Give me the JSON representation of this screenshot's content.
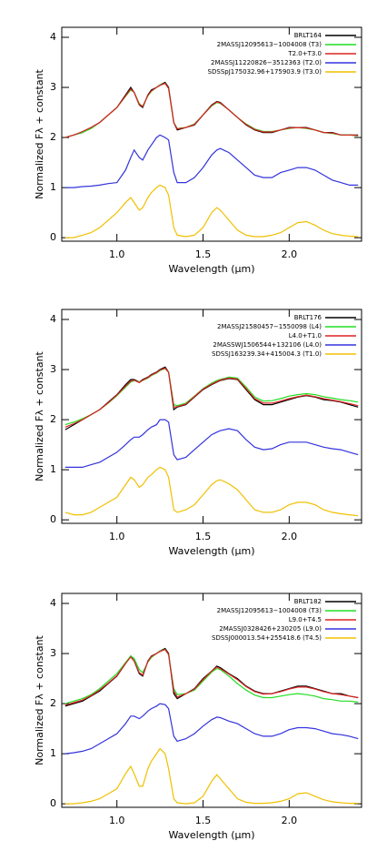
{
  "chart_data": [
    {
      "type": "line",
      "xlabel": "Wavelength (μm)",
      "ylabel": "Normalized Fλ + constant",
      "legend": "upper right",
      "xlim": [
        0.68,
        2.42
      ],
      "ylim": [
        -0.07,
        4.2
      ],
      "xticks": [
        {
          "value": 1,
          "label": "1.0"
        },
        {
          "value": 1.5,
          "label": "1.5"
        },
        {
          "value": 2,
          "label": "2.0"
        }
      ],
      "yticks": [
        0,
        1,
        2,
        3,
        4
      ],
      "x": [
        0.7,
        0.75,
        0.8,
        0.85,
        0.9,
        0.95,
        1.0,
        1.05,
        1.08,
        1.1,
        1.13,
        1.15,
        1.18,
        1.2,
        1.23,
        1.25,
        1.28,
        1.3,
        1.33,
        1.35,
        1.4,
        1.45,
        1.5,
        1.55,
        1.58,
        1.6,
        1.65,
        1.7,
        1.75,
        1.8,
        1.85,
        1.9,
        1.95,
        2.0,
        2.05,
        2.1,
        2.15,
        2.2,
        2.25,
        2.3,
        2.35,
        2.4
      ],
      "series": [
        {
          "name": "BRLT164",
          "color": "#000000",
          "values": [
            2.0,
            2.05,
            2.1,
            2.2,
            2.3,
            2.45,
            2.6,
            2.85,
            3.0,
            2.9,
            2.65,
            2.6,
            2.85,
            2.95,
            3.0,
            3.05,
            3.1,
            3.0,
            2.3,
            2.15,
            2.2,
            2.25,
            2.45,
            2.65,
            2.72,
            2.7,
            2.55,
            2.4,
            2.25,
            2.15,
            2.1,
            2.1,
            2.15,
            2.2,
            2.2,
            2.2,
            2.15,
            2.1,
            2.1,
            2.05,
            2.05,
            2.05
          ]
        },
        {
          "name": "2MASSJ12095613−1004008 (T3)",
          "color": "#22dd22",
          "values": [
            2.0,
            2.05,
            2.1,
            2.18,
            2.3,
            2.45,
            2.6,
            2.82,
            2.95,
            2.9,
            2.68,
            2.62,
            2.83,
            2.92,
            3.0,
            3.05,
            3.08,
            2.98,
            2.3,
            2.18,
            2.2,
            2.27,
            2.45,
            2.63,
            2.7,
            2.68,
            2.55,
            2.4,
            2.27,
            2.17,
            2.12,
            2.12,
            2.15,
            2.18,
            2.2,
            2.18,
            2.15,
            2.1,
            2.08,
            2.05,
            2.05,
            2.03
          ]
        },
        {
          "name": "T2.0+T3.0",
          "color": "#dd2222",
          "values": [
            2.0,
            2.05,
            2.12,
            2.2,
            2.3,
            2.45,
            2.6,
            2.83,
            2.97,
            2.9,
            2.66,
            2.62,
            2.84,
            2.93,
            3.0,
            3.04,
            3.08,
            2.98,
            2.3,
            2.17,
            2.2,
            2.26,
            2.45,
            2.64,
            2.71,
            2.69,
            2.55,
            2.4,
            2.26,
            2.16,
            2.11,
            2.11,
            2.15,
            2.19,
            2.2,
            2.19,
            2.15,
            2.1,
            2.09,
            2.05,
            2.05,
            2.04
          ]
        },
        {
          "name": "2MASSJ11220826−3512363 (T2.0)",
          "color": "#3333dd",
          "values": [
            1.0,
            1.0,
            1.02,
            1.03,
            1.05,
            1.08,
            1.1,
            1.35,
            1.6,
            1.75,
            1.6,
            1.55,
            1.75,
            1.85,
            2.0,
            2.05,
            2.0,
            1.95,
            1.3,
            1.1,
            1.1,
            1.2,
            1.4,
            1.65,
            1.75,
            1.78,
            1.7,
            1.55,
            1.4,
            1.25,
            1.2,
            1.2,
            1.3,
            1.35,
            1.4,
            1.4,
            1.35,
            1.25,
            1.15,
            1.1,
            1.05,
            1.05
          ]
        },
        {
          "name": "SDSSpJ175032.96+175903.9 (T3.0)",
          "color": "#f0c000",
          "values": [
            0.0,
            0.0,
            0.05,
            0.1,
            0.2,
            0.35,
            0.5,
            0.7,
            0.8,
            0.7,
            0.55,
            0.6,
            0.8,
            0.9,
            1.0,
            1.05,
            1.0,
            0.85,
            0.2,
            0.05,
            0.02,
            0.05,
            0.2,
            0.5,
            0.6,
            0.55,
            0.35,
            0.15,
            0.05,
            0.02,
            0.02,
            0.05,
            0.1,
            0.2,
            0.3,
            0.32,
            0.25,
            0.15,
            0.08,
            0.05,
            0.03,
            0.02
          ]
        }
      ]
    },
    {
      "type": "line",
      "xlabel": "Wavelength (μm)",
      "ylabel": "Normalized Fλ + constant",
      "legend": "upper right",
      "xlim": [
        0.68,
        2.42
      ],
      "ylim": [
        -0.07,
        4.2
      ],
      "xticks": [
        {
          "value": 1,
          "label": "1.0"
        },
        {
          "value": 1.5,
          "label": "1.5"
        },
        {
          "value": 2,
          "label": "2.0"
        }
      ],
      "yticks": [
        0,
        1,
        2,
        3,
        4
      ],
      "x": [
        0.7,
        0.75,
        0.8,
        0.85,
        0.9,
        0.95,
        1.0,
        1.05,
        1.08,
        1.1,
        1.13,
        1.15,
        1.18,
        1.2,
        1.23,
        1.25,
        1.28,
        1.3,
        1.33,
        1.35,
        1.4,
        1.45,
        1.5,
        1.55,
        1.58,
        1.6,
        1.65,
        1.7,
        1.75,
        1.8,
        1.85,
        1.9,
        1.95,
        2.0,
        2.05,
        2.1,
        2.15,
        2.2,
        2.25,
        2.3,
        2.35,
        2.4
      ],
      "series": [
        {
          "name": "BRLT176",
          "color": "#000000",
          "values": [
            1.8,
            1.9,
            2.0,
            2.1,
            2.2,
            2.35,
            2.5,
            2.7,
            2.8,
            2.8,
            2.75,
            2.8,
            2.85,
            2.9,
            2.95,
            3.0,
            3.05,
            2.95,
            2.2,
            2.25,
            2.3,
            2.45,
            2.6,
            2.7,
            2.75,
            2.78,
            2.82,
            2.8,
            2.6,
            2.4,
            2.3,
            2.3,
            2.35,
            2.4,
            2.45,
            2.48,
            2.45,
            2.4,
            2.38,
            2.35,
            2.3,
            2.25
          ]
        },
        {
          "name": "2MASSJ21580457−1550098 (L4)",
          "color": "#22dd22",
          "values": [
            1.9,
            1.95,
            2.02,
            2.1,
            2.2,
            2.33,
            2.48,
            2.65,
            2.75,
            2.78,
            2.75,
            2.78,
            2.83,
            2.88,
            2.93,
            2.98,
            3.02,
            2.95,
            2.3,
            2.28,
            2.33,
            2.47,
            2.62,
            2.73,
            2.78,
            2.8,
            2.85,
            2.83,
            2.65,
            2.45,
            2.37,
            2.38,
            2.42,
            2.47,
            2.5,
            2.52,
            2.5,
            2.46,
            2.43,
            2.4,
            2.38,
            2.35
          ]
        },
        {
          "name": "L4.0+T1.0",
          "color": "#dd2222",
          "values": [
            1.85,
            1.92,
            2.0,
            2.1,
            2.2,
            2.34,
            2.49,
            2.67,
            2.77,
            2.79,
            2.74,
            2.79,
            2.84,
            2.89,
            2.94,
            2.99,
            3.03,
            2.94,
            2.25,
            2.26,
            2.31,
            2.46,
            2.61,
            2.71,
            2.76,
            2.79,
            2.83,
            2.81,
            2.62,
            2.42,
            2.33,
            2.33,
            2.37,
            2.42,
            2.46,
            2.49,
            2.46,
            2.42,
            2.39,
            2.36,
            2.32,
            2.28
          ]
        },
        {
          "name": "2MASSWJ1506544+132106 (L4.0)",
          "color": "#3333dd",
          "values": [
            1.05,
            1.05,
            1.05,
            1.1,
            1.15,
            1.25,
            1.35,
            1.5,
            1.6,
            1.65,
            1.65,
            1.7,
            1.8,
            1.85,
            1.9,
            2.0,
            2.0,
            1.95,
            1.3,
            1.2,
            1.25,
            1.4,
            1.55,
            1.7,
            1.75,
            1.78,
            1.82,
            1.78,
            1.6,
            1.45,
            1.4,
            1.42,
            1.5,
            1.55,
            1.55,
            1.55,
            1.5,
            1.45,
            1.42,
            1.4,
            1.35,
            1.3
          ]
        },
        {
          "name": "SDSSJ163239.34+415004.3 (T1.0)",
          "color": "#f0c000",
          "values": [
            0.15,
            0.1,
            0.1,
            0.15,
            0.25,
            0.35,
            0.45,
            0.7,
            0.85,
            0.8,
            0.65,
            0.7,
            0.85,
            0.9,
            1.0,
            1.05,
            1.0,
            0.85,
            0.2,
            0.15,
            0.2,
            0.3,
            0.5,
            0.7,
            0.78,
            0.8,
            0.72,
            0.6,
            0.4,
            0.2,
            0.15,
            0.15,
            0.2,
            0.3,
            0.35,
            0.35,
            0.3,
            0.2,
            0.15,
            0.12,
            0.1,
            0.08
          ]
        }
      ]
    },
    {
      "type": "line",
      "xlabel": "Wavelength (μm)",
      "ylabel": "Normalized Fλ + constant",
      "legend": "upper right",
      "xlim": [
        0.68,
        2.42
      ],
      "ylim": [
        -0.07,
        4.2
      ],
      "xticks": [
        {
          "value": 1,
          "label": "1.0"
        },
        {
          "value": 1.5,
          "label": "1.5"
        },
        {
          "value": 2,
          "label": "2.0"
        }
      ],
      "yticks": [
        0,
        1,
        2,
        3,
        4
      ],
      "x": [
        0.7,
        0.75,
        0.8,
        0.85,
        0.9,
        0.95,
        1.0,
        1.05,
        1.08,
        1.1,
        1.13,
        1.15,
        1.18,
        1.2,
        1.23,
        1.25,
        1.28,
        1.3,
        1.33,
        1.35,
        1.4,
        1.45,
        1.5,
        1.55,
        1.58,
        1.6,
        1.65,
        1.7,
        1.75,
        1.8,
        1.85,
        1.9,
        1.95,
        2.0,
        2.05,
        2.1,
        2.15,
        2.2,
        2.25,
        2.3,
        2.35,
        2.4
      ],
      "series": [
        {
          "name": "BRLT182",
          "color": "#000000",
          "values": [
            1.95,
            2.0,
            2.05,
            2.15,
            2.25,
            2.4,
            2.55,
            2.8,
            2.95,
            2.85,
            2.6,
            2.55,
            2.85,
            2.95,
            3.0,
            3.05,
            3.1,
            3.0,
            2.2,
            2.1,
            2.2,
            2.3,
            2.5,
            2.65,
            2.75,
            2.72,
            2.6,
            2.5,
            2.35,
            2.25,
            2.2,
            2.2,
            2.25,
            2.3,
            2.35,
            2.35,
            2.3,
            2.25,
            2.2,
            2.2,
            2.15,
            2.12
          ]
        },
        {
          "name": "2MASSJ12095613−1004008 (T3)",
          "color": "#22dd22",
          "values": [
            2.0,
            2.05,
            2.1,
            2.18,
            2.3,
            2.45,
            2.6,
            2.82,
            2.95,
            2.9,
            2.68,
            2.62,
            2.83,
            2.92,
            3.0,
            3.05,
            3.08,
            2.98,
            2.3,
            2.18,
            2.2,
            2.27,
            2.45,
            2.63,
            2.7,
            2.68,
            2.55,
            2.4,
            2.27,
            2.17,
            2.12,
            2.12,
            2.15,
            2.18,
            2.2,
            2.18,
            2.15,
            2.1,
            2.08,
            2.05,
            2.05,
            2.03
          ]
        },
        {
          "name": "L9.0+T4.5",
          "color": "#dd2222",
          "values": [
            1.97,
            2.02,
            2.07,
            2.16,
            2.27,
            2.41,
            2.56,
            2.8,
            2.93,
            2.85,
            2.62,
            2.57,
            2.84,
            2.94,
            3.0,
            3.04,
            3.08,
            2.98,
            2.25,
            2.13,
            2.2,
            2.29,
            2.48,
            2.65,
            2.73,
            2.7,
            2.59,
            2.48,
            2.34,
            2.24,
            2.19,
            2.2,
            2.24,
            2.29,
            2.33,
            2.33,
            2.29,
            2.24,
            2.2,
            2.18,
            2.15,
            2.12
          ]
        },
        {
          "name": "2MASSJ0328426+230205 (L9.0)",
          "color": "#3333dd",
          "values": [
            1.0,
            1.02,
            1.05,
            1.1,
            1.2,
            1.3,
            1.4,
            1.6,
            1.75,
            1.75,
            1.7,
            1.75,
            1.85,
            1.9,
            1.95,
            2.0,
            1.98,
            1.9,
            1.35,
            1.25,
            1.3,
            1.4,
            1.55,
            1.68,
            1.73,
            1.72,
            1.65,
            1.6,
            1.5,
            1.4,
            1.35,
            1.35,
            1.4,
            1.48,
            1.52,
            1.52,
            1.5,
            1.45,
            1.4,
            1.38,
            1.35,
            1.3
          ]
        },
        {
          "name": "SDSSJ000013.54+255418.6 (T4.5)",
          "color": "#f0c000",
          "values": [
            0.0,
            0.0,
            0.02,
            0.05,
            0.1,
            0.2,
            0.3,
            0.6,
            0.75,
            0.6,
            0.35,
            0.35,
            0.7,
            0.85,
            1.0,
            1.1,
            1.0,
            0.7,
            0.1,
            0.02,
            0.0,
            0.02,
            0.15,
            0.45,
            0.58,
            0.5,
            0.3,
            0.1,
            0.03,
            0.01,
            0.01,
            0.02,
            0.05,
            0.1,
            0.2,
            0.22,
            0.15,
            0.08,
            0.04,
            0.02,
            0.01,
            0.01
          ]
        }
      ]
    }
  ]
}
